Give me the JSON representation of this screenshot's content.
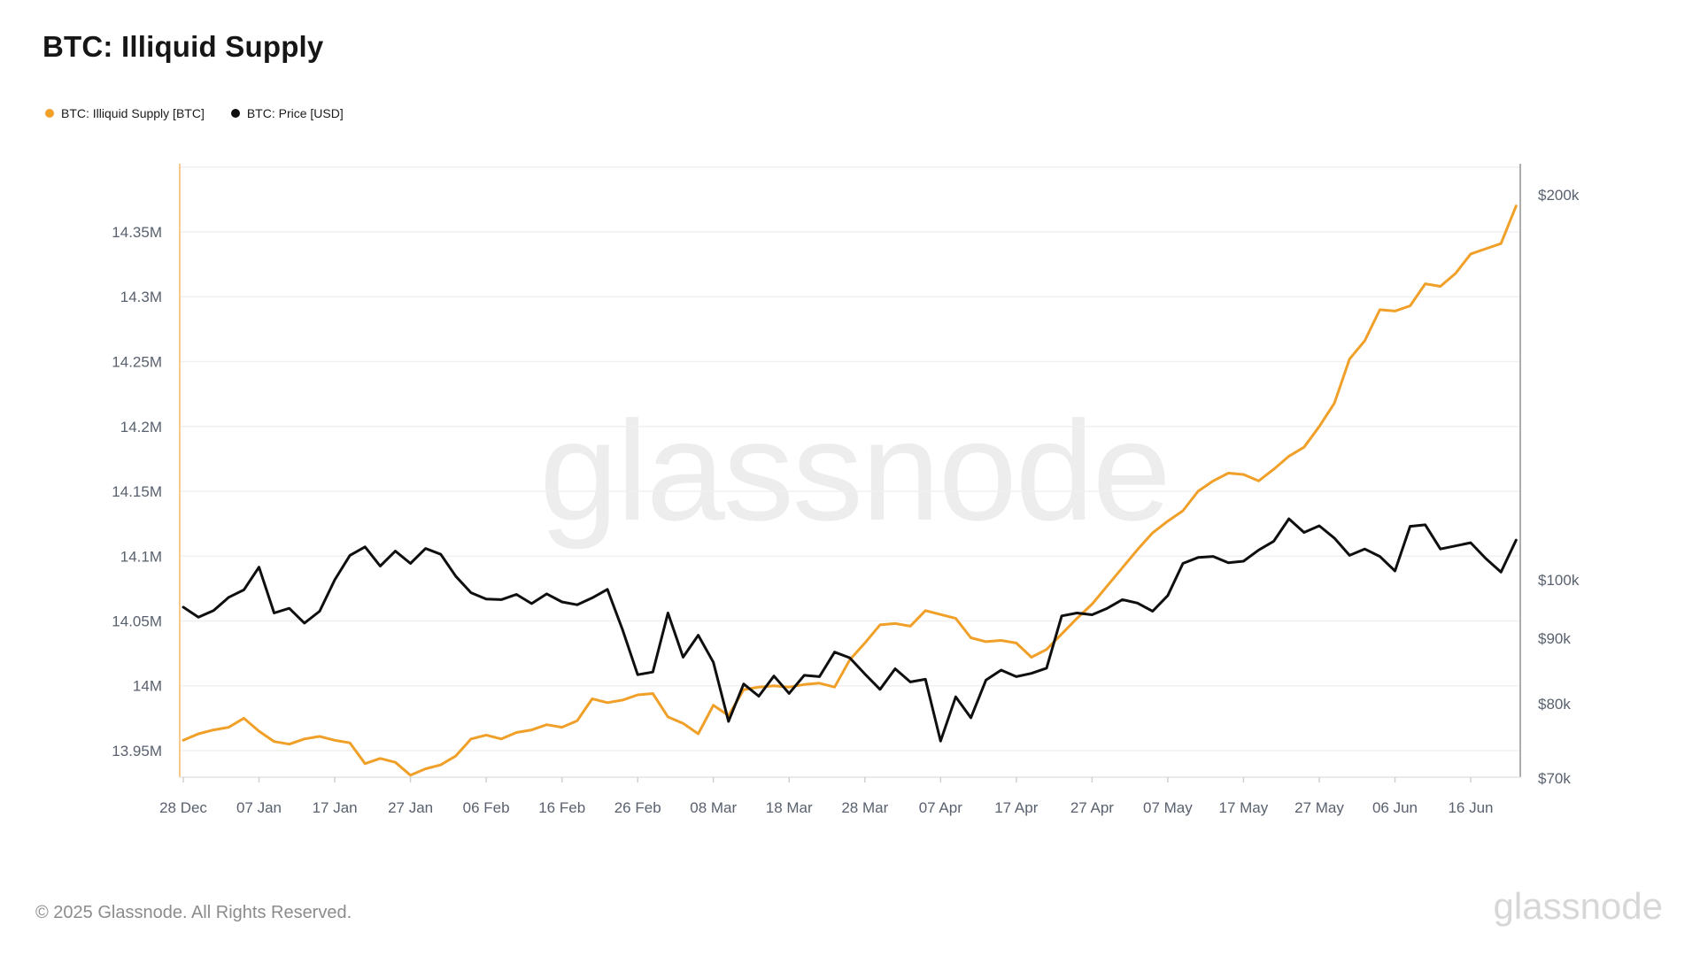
{
  "header": {
    "title": "BTC: Illiquid Supply"
  },
  "legend": [
    {
      "label": "BTC: Illiquid Supply [BTC]",
      "color": "#f0a028"
    },
    {
      "label": "BTC: Price [USD]",
      "color": "#0f0f0f"
    }
  ],
  "watermark": "glassnode",
  "footer": {
    "copyright": "© 2025 Glassnode. All Rights Reserved.",
    "brand": "glassnode"
  },
  "chart_data": {
    "type": "line",
    "title": "BTC: Illiquid Supply",
    "grid": "horizontal-only",
    "colors": {
      "illiquid_supply": "#f0a028",
      "price": "#0f0f0f",
      "left_axis_line": "#f8c98c",
      "right_axis_line": "#909090",
      "bottom_axis_line": "#e3e3e3",
      "gridline": "#f0f0f0",
      "tick_mark": "#d0d0d0",
      "axis_text": "#59616e"
    },
    "x_axis": {
      "unit": "days since first point (28 Dec)",
      "tick_labels": [
        "28 Dec",
        "07 Jan",
        "17 Jan",
        "27 Jan",
        "06 Feb",
        "16 Feb",
        "26 Feb",
        "08 Mar",
        "18 Mar",
        "28 Mar",
        "07 Apr",
        "17 Apr",
        "27 Apr",
        "07 May",
        "17 May",
        "27 May",
        "06 Jun",
        "16 Jun"
      ],
      "tick_days": [
        0,
        10,
        20,
        30,
        40,
        50,
        60,
        70,
        80,
        90,
        100,
        110,
        120,
        130,
        140,
        150,
        160,
        170
      ]
    },
    "left_axis": {
      "scale": "linear",
      "unit": "M BTC",
      "ticks": [
        {
          "label": "14.35M",
          "value": 14.35
        },
        {
          "label": "14.3M",
          "value": 14.3
        },
        {
          "label": "14.25M",
          "value": 14.25
        },
        {
          "label": "14.2M",
          "value": 14.2
        },
        {
          "label": "14.15M",
          "value": 14.15
        },
        {
          "label": "14.1M",
          "value": 14.1
        },
        {
          "label": "14.05M",
          "value": 14.05
        },
        {
          "label": "14M",
          "value": 14.0
        },
        {
          "label": "13.95M",
          "value": 13.95
        }
      ],
      "extra_gridline_values": [
        14.4
      ]
    },
    "right_axis": {
      "scale": "log",
      "unit": "USD (thousands)",
      "ticks": [
        {
          "label": "$200k",
          "value": 200
        },
        {
          "label": "$100k",
          "value": 100
        },
        {
          "label": "$90k",
          "value": 90
        },
        {
          "label": "$80k",
          "value": 80
        },
        {
          "label": "$70k",
          "value": 70
        }
      ]
    },
    "x_days": [
      0,
      2,
      4,
      6,
      8,
      10,
      12,
      14,
      16,
      18,
      20,
      22,
      24,
      26,
      28,
      30,
      32,
      34,
      36,
      38,
      40,
      42,
      44,
      46,
      48,
      50,
      52,
      54,
      56,
      58,
      60,
      62,
      64,
      66,
      68,
      70,
      72,
      74,
      76,
      78,
      80,
      82,
      84,
      86,
      88,
      90,
      92,
      94,
      96,
      98,
      100,
      102,
      104,
      106,
      108,
      110,
      112,
      114,
      116,
      118,
      120,
      122,
      124,
      126,
      128,
      130,
      132,
      134,
      136,
      138,
      140,
      142,
      144,
      146,
      148,
      150,
      152,
      154,
      156,
      158,
      160,
      162,
      164,
      166,
      168,
      170,
      172,
      174,
      176
    ],
    "series": [
      {
        "name": "BTC: Illiquid Supply [BTC]",
        "axis": "left",
        "color": "#f0a028",
        "values": [
          13.958,
          13.963,
          13.966,
          13.968,
          13.975,
          13.965,
          13.957,
          13.955,
          13.959,
          13.961,
          13.958,
          13.956,
          13.94,
          13.944,
          13.941,
          13.931,
          13.936,
          13.939,
          13.946,
          13.959,
          13.962,
          13.959,
          13.964,
          13.966,
          13.97,
          13.968,
          13.973,
          13.99,
          13.987,
          13.989,
          13.993,
          13.994,
          13.976,
          13.971,
          13.963,
          13.985,
          13.977,
          13.997,
          13.999,
          14.0,
          13.999,
          14.001,
          14.002,
          13.999,
          14.02,
          14.033,
          14.047,
          14.048,
          14.046,
          14.058,
          14.055,
          14.052,
          14.037,
          14.034,
          14.035,
          14.033,
          14.022,
          14.028,
          14.04,
          14.052,
          14.063,
          14.077,
          14.091,
          14.105,
          14.118,
          14.127,
          14.135,
          14.15,
          14.158,
          14.164,
          14.163,
          14.158,
          14.167,
          14.177,
          14.184,
          14.2,
          14.218,
          14.252,
          14.266,
          14.29,
          14.289,
          14.293,
          14.31,
          14.308,
          14.318,
          14.333,
          14.337,
          14.341,
          14.37
        ]
      },
      {
        "name": "BTC: Price [USD]",
        "axis": "right",
        "color": "#0f0f0f",
        "values": [
          95.2,
          93.5,
          94.6,
          96.9,
          98.2,
          102.3,
          94.2,
          95.0,
          92.5,
          94.5,
          100.0,
          104.5,
          106.1,
          102.5,
          105.3,
          103.0,
          105.8,
          104.7,
          100.6,
          97.7,
          96.6,
          96.5,
          97.4,
          95.8,
          97.5,
          96.1,
          95.6,
          96.8,
          98.3,
          91.4,
          84.3,
          84.7,
          94.2,
          87.0,
          90.5,
          86.2,
          77.5,
          82.9,
          81.1,
          84.1,
          81.5,
          84.2,
          84.0,
          87.8,
          86.9,
          84.4,
          82.1,
          85.2,
          83.2,
          83.6,
          74.8,
          81.0,
          78.0,
          83.5,
          85.0,
          84.0,
          84.5,
          85.3,
          93.7,
          94.2,
          93.9,
          95.0,
          96.5,
          95.9,
          94.5,
          97.2,
          103.0,
          104.1,
          104.3,
          103.1,
          103.4,
          105.5,
          107.2,
          111.6,
          108.9,
          110.2,
          107.8,
          104.5,
          105.7,
          104.3,
          101.6,
          110.1,
          110.4,
          105.7,
          106.3,
          106.9,
          103.9,
          101.4,
          107.4
        ]
      }
    ]
  }
}
